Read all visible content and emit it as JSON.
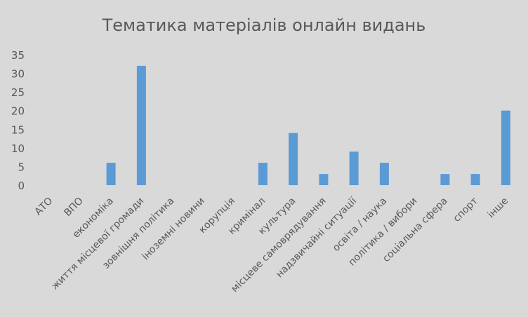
{
  "chart_data": {
    "type": "bar",
    "title": "Тематика матеріалів онлайн видань",
    "xlabel": "",
    "ylabel": "",
    "ylim": [
      0,
      35
    ],
    "yticks": [
      0,
      5,
      10,
      15,
      20,
      25,
      30,
      35
    ],
    "grid": false,
    "legend": "none",
    "bar_color": "#5b9bd5",
    "categories": [
      "АТО",
      "ВПО",
      "економіка",
      "життя місцевої громади",
      "зовнішня політика",
      "іноземні новини",
      "корупція",
      "кримінал",
      "культура",
      "місцеве самоврядування",
      "надзвичайні ситуації",
      "освіта / наука",
      "політика / вибори",
      "соціальна сфера",
      "спорт",
      "інше"
    ],
    "values": [
      0,
      0,
      6,
      32,
      0,
      0,
      0,
      6,
      14,
      3,
      9,
      6,
      0,
      3,
      3,
      20
    ]
  }
}
